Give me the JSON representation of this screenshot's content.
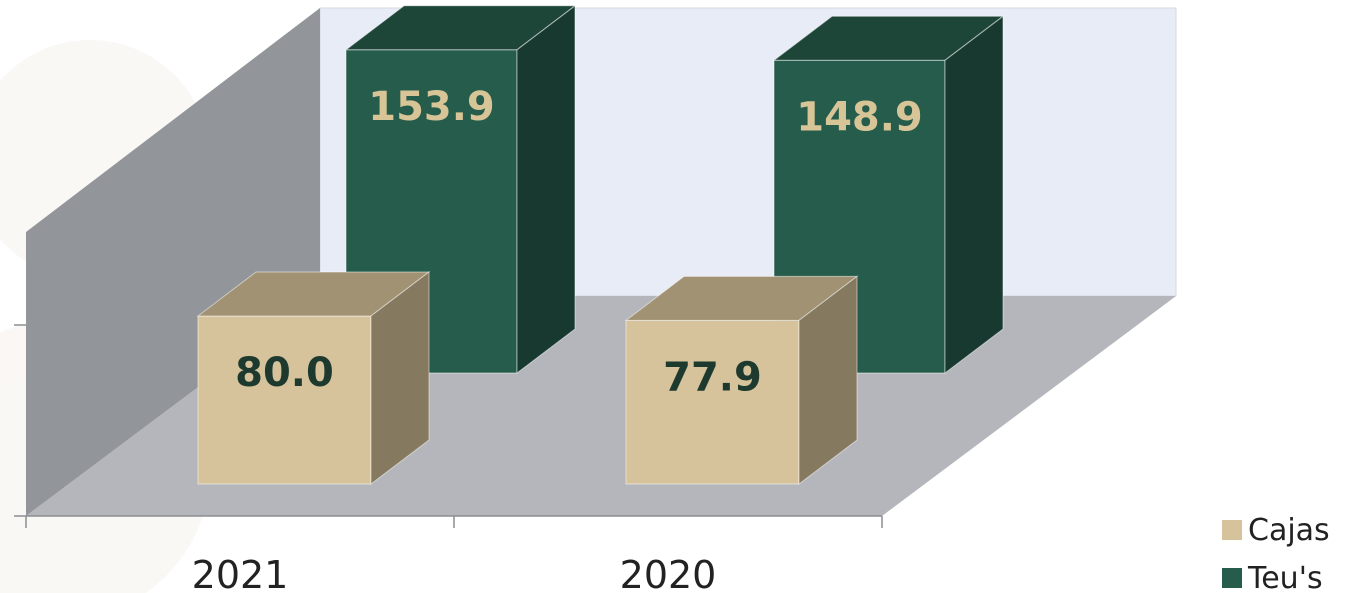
{
  "chart_data": {
    "type": "bar",
    "categories": [
      "2021",
      "2020"
    ],
    "series": [
      {
        "name": "Cajas",
        "values": [
          80.0,
          77.9
        ],
        "color": "#d6c39b",
        "label_color": "#1e3a2f"
      },
      {
        "name": "Teu's",
        "values": [
          153.9,
          148.9
        ],
        "color": "#265c4b",
        "label_color": "#d8c597"
      }
    ],
    "ylim": [
      0,
      200
    ],
    "grid": false,
    "legend_position": "bottom-right",
    "value_labels": {
      "Cajas": [
        "80.0",
        "77.9"
      ],
      "Teu's": [
        "153.9",
        "148.9"
      ]
    }
  }
}
